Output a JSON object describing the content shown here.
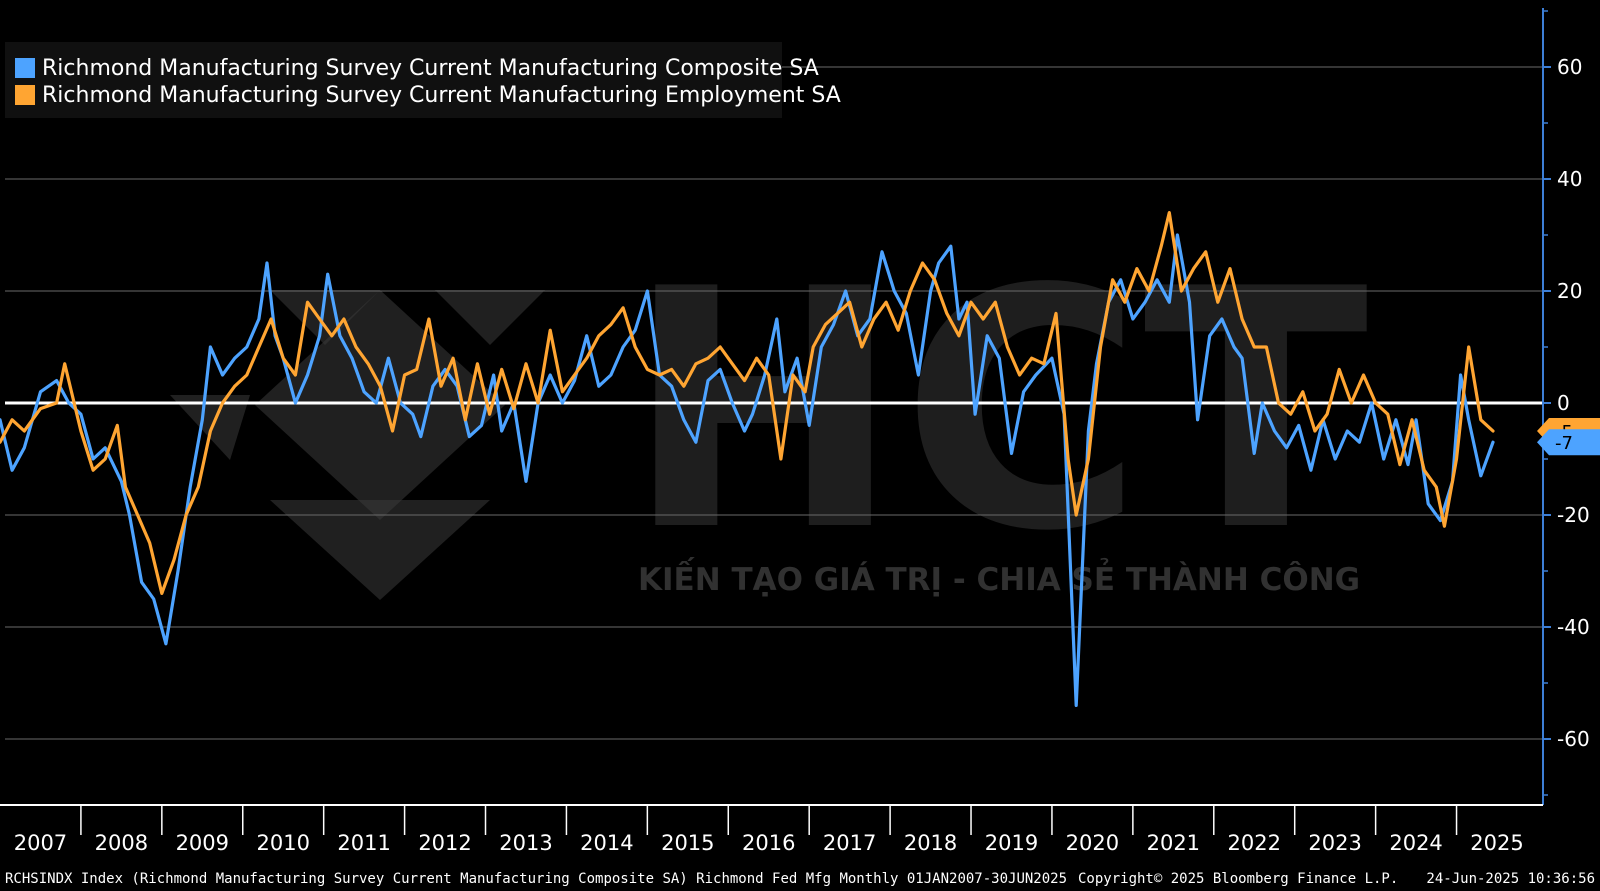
{
  "chart_data": {
    "type": "line",
    "title": "",
    "xlabel": "",
    "ylabel": "",
    "ylim": [
      -72,
      72
    ],
    "y_ticks": [
      -60,
      -40,
      -20,
      0,
      20,
      40,
      60
    ],
    "y_tick_labels": [
      "-60",
      "-40",
      "-20",
      "0",
      "20",
      "40",
      "60"
    ],
    "x_tick_labels": [
      "2007",
      "2008",
      "2009",
      "2010",
      "2011",
      "2012",
      "2013",
      "2014",
      "2015",
      "2016",
      "2017",
      "2018",
      "2019",
      "2020",
      "2021",
      "2022",
      "2023",
      "2024",
      "2025"
    ],
    "x_range": [
      2007.0,
      2025.5
    ],
    "grid": true,
    "legend_position": "top-left",
    "series": [
      {
        "name": "Richmond Manufacturing Survey Current Manufacturing Composite SA",
        "color": "#4da3ff",
        "last_value_label": "-7",
        "points": [
          [
            2007.0,
            -3
          ],
          [
            2007.15,
            -12
          ],
          [
            2007.3,
            -8
          ],
          [
            2007.5,
            2
          ],
          [
            2007.7,
            4
          ],
          [
            2007.85,
            0
          ],
          [
            2008.0,
            -2
          ],
          [
            2008.15,
            -10
          ],
          [
            2008.3,
            -8
          ],
          [
            2008.5,
            -14
          ],
          [
            2008.6,
            -20
          ],
          [
            2008.75,
            -32
          ],
          [
            2008.9,
            -35
          ],
          [
            2009.05,
            -43
          ],
          [
            2009.2,
            -30
          ],
          [
            2009.35,
            -15
          ],
          [
            2009.5,
            -3
          ],
          [
            2009.6,
            10
          ],
          [
            2009.75,
            5
          ],
          [
            2009.9,
            8
          ],
          [
            2010.05,
            10
          ],
          [
            2010.2,
            15
          ],
          [
            2010.3,
            25
          ],
          [
            2010.4,
            12
          ],
          [
            2010.5,
            8
          ],
          [
            2010.65,
            0
          ],
          [
            2010.8,
            5
          ],
          [
            2010.95,
            12
          ],
          [
            2011.05,
            23
          ],
          [
            2011.2,
            12
          ],
          [
            2011.35,
            8
          ],
          [
            2011.5,
            2
          ],
          [
            2011.65,
            0
          ],
          [
            2011.8,
            8
          ],
          [
            2011.95,
            0
          ],
          [
            2012.1,
            -2
          ],
          [
            2012.2,
            -6
          ],
          [
            2012.35,
            3
          ],
          [
            2012.5,
            6
          ],
          [
            2012.65,
            3
          ],
          [
            2012.8,
            -6
          ],
          [
            2012.95,
            -4
          ],
          [
            2013.1,
            5
          ],
          [
            2013.2,
            -5
          ],
          [
            2013.35,
            0
          ],
          [
            2013.5,
            -14
          ],
          [
            2013.65,
            0
          ],
          [
            2013.8,
            5
          ],
          [
            2013.95,
            0
          ],
          [
            2014.1,
            4
          ],
          [
            2014.25,
            12
          ],
          [
            2014.4,
            3
          ],
          [
            2014.55,
            5
          ],
          [
            2014.7,
            10
          ],
          [
            2014.85,
            13
          ],
          [
            2015.0,
            20
          ],
          [
            2015.15,
            5
          ],
          [
            2015.3,
            3
          ],
          [
            2015.45,
            -3
          ],
          [
            2015.6,
            -7
          ],
          [
            2015.75,
            4
          ],
          [
            2015.9,
            6
          ],
          [
            2016.05,
            0
          ],
          [
            2016.2,
            -5
          ],
          [
            2016.3,
            -2
          ],
          [
            2016.45,
            5
          ],
          [
            2016.6,
            15
          ],
          [
            2016.7,
            2
          ],
          [
            2016.85,
            8
          ],
          [
            2017.0,
            -4
          ],
          [
            2017.15,
            10
          ],
          [
            2017.3,
            14
          ],
          [
            2017.45,
            20
          ],
          [
            2017.6,
            12
          ],
          [
            2017.75,
            15
          ],
          [
            2017.9,
            27
          ],
          [
            2018.05,
            20
          ],
          [
            2018.2,
            16
          ],
          [
            2018.35,
            5
          ],
          [
            2018.5,
            20
          ],
          [
            2018.6,
            25
          ],
          [
            2018.75,
            28
          ],
          [
            2018.85,
            15
          ],
          [
            2018.95,
            18
          ],
          [
            2019.05,
            -2
          ],
          [
            2019.2,
            12
          ],
          [
            2019.35,
            8
          ],
          [
            2019.5,
            -9
          ],
          [
            2019.65,
            2
          ],
          [
            2019.8,
            5
          ],
          [
            2020.0,
            8
          ],
          [
            2020.15,
            -2
          ],
          [
            2020.3,
            -54
          ],
          [
            2020.45,
            -5
          ],
          [
            2020.55,
            7
          ],
          [
            2020.7,
            18
          ],
          [
            2020.85,
            22
          ],
          [
            2021.0,
            15
          ],
          [
            2021.15,
            18
          ],
          [
            2021.3,
            22
          ],
          [
            2021.45,
            18
          ],
          [
            2021.55,
            30
          ],
          [
            2021.7,
            18
          ],
          [
            2021.8,
            -3
          ],
          [
            2021.95,
            12
          ],
          [
            2022.1,
            15
          ],
          [
            2022.25,
            10
          ],
          [
            2022.35,
            8
          ],
          [
            2022.5,
            -9
          ],
          [
            2022.6,
            0
          ],
          [
            2022.75,
            -5
          ],
          [
            2022.9,
            -8
          ],
          [
            2023.05,
            -4
          ],
          [
            2023.2,
            -12
          ],
          [
            2023.35,
            -3
          ],
          [
            2023.5,
            -10
          ],
          [
            2023.65,
            -5
          ],
          [
            2023.8,
            -7
          ],
          [
            2023.95,
            0
          ],
          [
            2024.1,
            -10
          ],
          [
            2024.25,
            -3
          ],
          [
            2024.4,
            -11
          ],
          [
            2024.5,
            -3
          ],
          [
            2024.65,
            -18
          ],
          [
            2024.8,
            -21
          ],
          [
            2024.95,
            -14
          ],
          [
            2025.05,
            5
          ],
          [
            2025.15,
            -3
          ],
          [
            2025.3,
            -13
          ],
          [
            2025.45,
            -7
          ]
        ]
      },
      {
        "name": "Richmond Manufacturing Survey Current Manufacturing Employment SA",
        "color": "#ffa532",
        "last_value_label": "-5",
        "points": [
          [
            2007.0,
            -7
          ],
          [
            2007.15,
            -3
          ],
          [
            2007.3,
            -5
          ],
          [
            2007.5,
            -1
          ],
          [
            2007.7,
            0
          ],
          [
            2007.8,
            7
          ],
          [
            2008.0,
            -5
          ],
          [
            2008.15,
            -12
          ],
          [
            2008.3,
            -10
          ],
          [
            2008.45,
            -4
          ],
          [
            2008.55,
            -15
          ],
          [
            2008.7,
            -20
          ],
          [
            2008.85,
            -25
          ],
          [
            2009.0,
            -34
          ],
          [
            2009.15,
            -28
          ],
          [
            2009.3,
            -20
          ],
          [
            2009.45,
            -15
          ],
          [
            2009.6,
            -5
          ],
          [
            2009.75,
            0
          ],
          [
            2009.9,
            3
          ],
          [
            2010.05,
            5
          ],
          [
            2010.2,
            10
          ],
          [
            2010.35,
            15
          ],
          [
            2010.5,
            8
          ],
          [
            2010.65,
            5
          ],
          [
            2010.8,
            18
          ],
          [
            2010.95,
            15
          ],
          [
            2011.1,
            12
          ],
          [
            2011.25,
            15
          ],
          [
            2011.4,
            10
          ],
          [
            2011.55,
            7
          ],
          [
            2011.7,
            3
          ],
          [
            2011.85,
            -5
          ],
          [
            2012.0,
            5
          ],
          [
            2012.15,
            6
          ],
          [
            2012.3,
            15
          ],
          [
            2012.45,
            3
          ],
          [
            2012.6,
            8
          ],
          [
            2012.75,
            -3
          ],
          [
            2012.9,
            7
          ],
          [
            2013.05,
            -2
          ],
          [
            2013.2,
            6
          ],
          [
            2013.35,
            -1
          ],
          [
            2013.5,
            7
          ],
          [
            2013.65,
            0
          ],
          [
            2013.8,
            13
          ],
          [
            2013.95,
            2
          ],
          [
            2014.1,
            5
          ],
          [
            2014.25,
            8
          ],
          [
            2014.4,
            12
          ],
          [
            2014.55,
            14
          ],
          [
            2014.7,
            17
          ],
          [
            2014.85,
            10
          ],
          [
            2015.0,
            6
          ],
          [
            2015.15,
            5
          ],
          [
            2015.3,
            6
          ],
          [
            2015.45,
            3
          ],
          [
            2015.6,
            7
          ],
          [
            2015.75,
            8
          ],
          [
            2015.9,
            10
          ],
          [
            2016.05,
            7
          ],
          [
            2016.2,
            4
          ],
          [
            2016.35,
            8
          ],
          [
            2016.5,
            5
          ],
          [
            2016.65,
            -10
          ],
          [
            2016.8,
            5
          ],
          [
            2016.95,
            2
          ],
          [
            2017.05,
            10
          ],
          [
            2017.2,
            14
          ],
          [
            2017.35,
            16
          ],
          [
            2017.5,
            18
          ],
          [
            2017.65,
            10
          ],
          [
            2017.8,
            15
          ],
          [
            2017.95,
            18
          ],
          [
            2018.1,
            13
          ],
          [
            2018.25,
            20
          ],
          [
            2018.4,
            25
          ],
          [
            2018.55,
            22
          ],
          [
            2018.7,
            16
          ],
          [
            2018.85,
            12
          ],
          [
            2019.0,
            18
          ],
          [
            2019.15,
            15
          ],
          [
            2019.3,
            18
          ],
          [
            2019.45,
            10
          ],
          [
            2019.6,
            5
          ],
          [
            2019.75,
            8
          ],
          [
            2019.9,
            7
          ],
          [
            2020.05,
            16
          ],
          [
            2020.2,
            -10
          ],
          [
            2020.3,
            -20
          ],
          [
            2020.45,
            -10
          ],
          [
            2020.6,
            10
          ],
          [
            2020.75,
            22
          ],
          [
            2020.9,
            18
          ],
          [
            2021.05,
            24
          ],
          [
            2021.2,
            20
          ],
          [
            2021.35,
            28
          ],
          [
            2021.45,
            34
          ],
          [
            2021.6,
            20
          ],
          [
            2021.75,
            24
          ],
          [
            2021.9,
            27
          ],
          [
            2022.05,
            18
          ],
          [
            2022.2,
            24
          ],
          [
            2022.35,
            15
          ],
          [
            2022.5,
            10
          ],
          [
            2022.65,
            10
          ],
          [
            2022.8,
            0
          ],
          [
            2022.95,
            -2
          ],
          [
            2023.1,
            2
          ],
          [
            2023.25,
            -5
          ],
          [
            2023.4,
            -2
          ],
          [
            2023.55,
            6
          ],
          [
            2023.7,
            0
          ],
          [
            2023.85,
            5
          ],
          [
            2024.0,
            0
          ],
          [
            2024.15,
            -2
          ],
          [
            2024.3,
            -11
          ],
          [
            2024.45,
            -3
          ],
          [
            2024.6,
            -12
          ],
          [
            2024.75,
            -15
          ],
          [
            2024.85,
            -22
          ],
          [
            2025.0,
            -10
          ],
          [
            2025.15,
            10
          ],
          [
            2025.3,
            -3
          ],
          [
            2025.45,
            -5
          ]
        ]
      }
    ]
  },
  "watermark": {
    "big": "HCT",
    "tagline": "KIẾN TẠO GIÁ TRỊ - CHIA SẺ THÀNH CÔNG"
  },
  "footer": {
    "left": "RCHSINDX Index (Richmond Manufacturing Survey Current Manufacturing Composite SA) Richmond Fed Mfg  Monthly 01JAN2007-30JUN2025",
    "copyright": "Copyright© 2025 Bloomberg Finance L.P.",
    "timestamp": "24-Jun-2025 10:36:56"
  },
  "colors": {
    "background": "#000000",
    "grid": "#6a6a6a",
    "zero_line": "#ffffff",
    "axis": "#3d7fd6"
  }
}
